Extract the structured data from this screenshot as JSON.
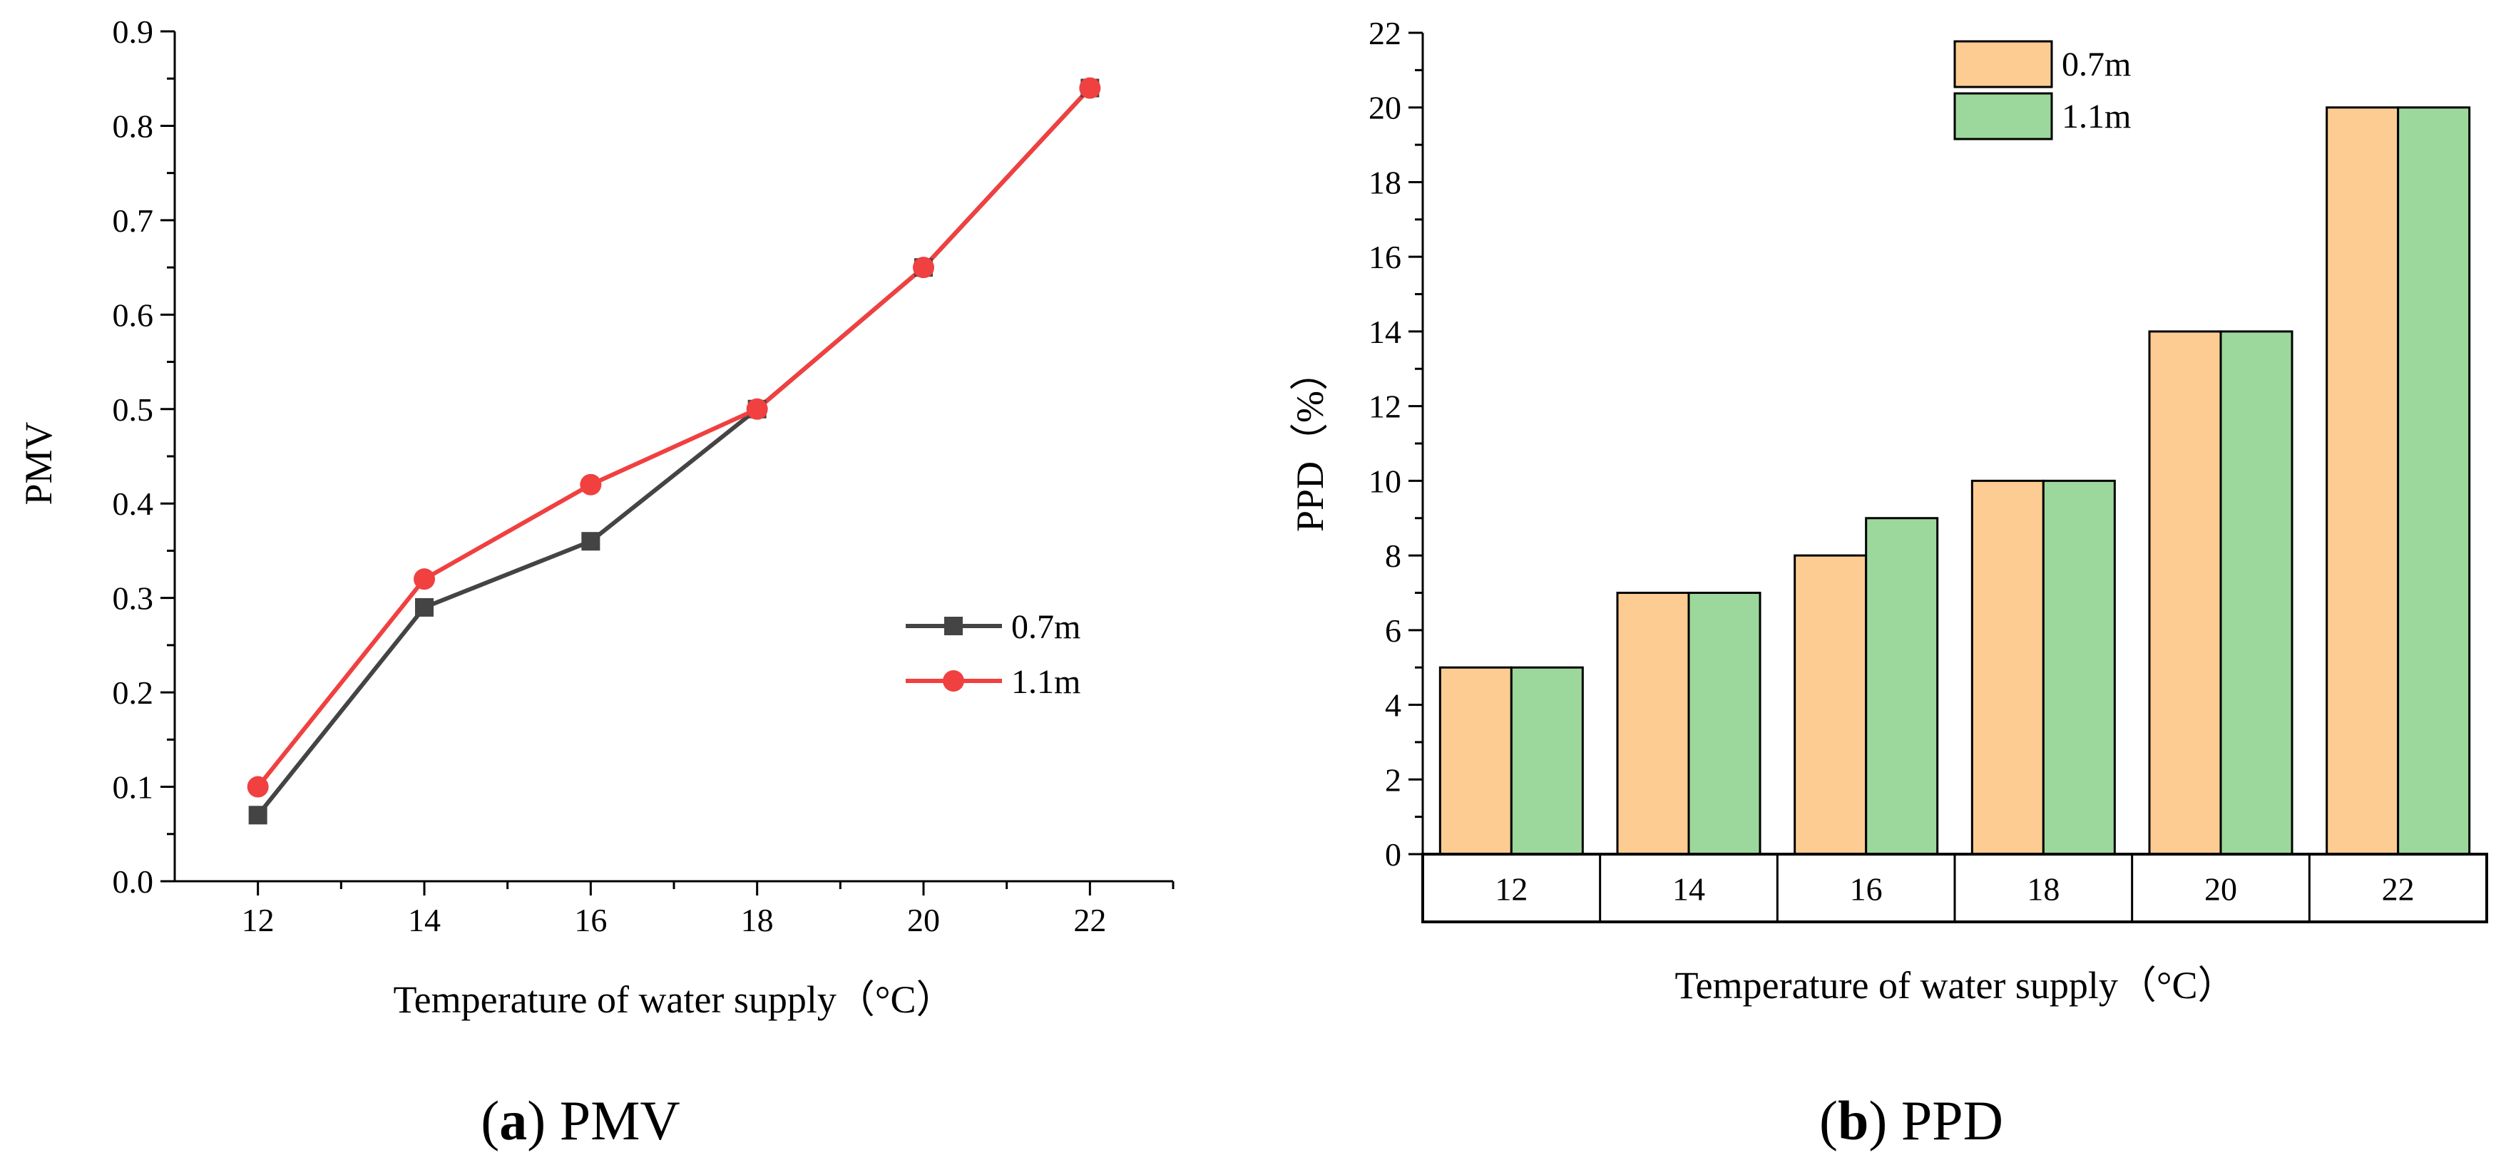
{
  "chart_data": [
    {
      "type": "line",
      "x": [
        12,
        14,
        16,
        18,
        20,
        22
      ],
      "series": [
        {
          "name": "0.7m",
          "values": [
            0.07,
            0.29,
            0.36,
            0.5,
            0.65,
            0.84
          ],
          "color": "#444444",
          "marker": "square"
        },
        {
          "name": "1.1m",
          "values": [
            0.1,
            0.32,
            0.42,
            0.5,
            0.65,
            0.84
          ],
          "color": "#f04040",
          "marker": "circle"
        }
      ],
      "xlabel": "Temperature of water supply（°C）",
      "ylabel": "PMV",
      "xlim": [
        11,
        23
      ],
      "ylim": [
        0.0,
        0.9
      ],
      "xticks": [
        "12",
        "14",
        "16",
        "18",
        "20",
        "22"
      ],
      "yticks": [
        "0.0",
        "0.1",
        "0.2",
        "0.3",
        "0.4",
        "0.5",
        "0.6",
        "0.7",
        "0.8",
        "0.9"
      ],
      "grid": false,
      "legend": "center-right",
      "caption": {
        "letter": "a",
        "text": "PMV"
      }
    },
    {
      "type": "bar",
      "categories": [
        "12",
        "14",
        "16",
        "18",
        "20",
        "22"
      ],
      "series": [
        {
          "name": "0.7m",
          "values": [
            5,
            7,
            8,
            10,
            14,
            20
          ],
          "color": "#fdcc92"
        },
        {
          "name": "1.1m",
          "values": [
            5,
            7,
            9,
            10,
            14,
            20
          ],
          "color": "#9cd89c"
        }
      ],
      "xlabel": "Temperature of water supply（°C）",
      "ylabel": "PPD（%）",
      "ylim": [
        0,
        22
      ],
      "yticks": [
        "0",
        "2",
        "4",
        "6",
        "8",
        "10",
        "12",
        "14",
        "16",
        "18",
        "20",
        "22"
      ],
      "grid": false,
      "legend": "top-center",
      "caption": {
        "letter": "b",
        "text": "PPD"
      }
    }
  ]
}
